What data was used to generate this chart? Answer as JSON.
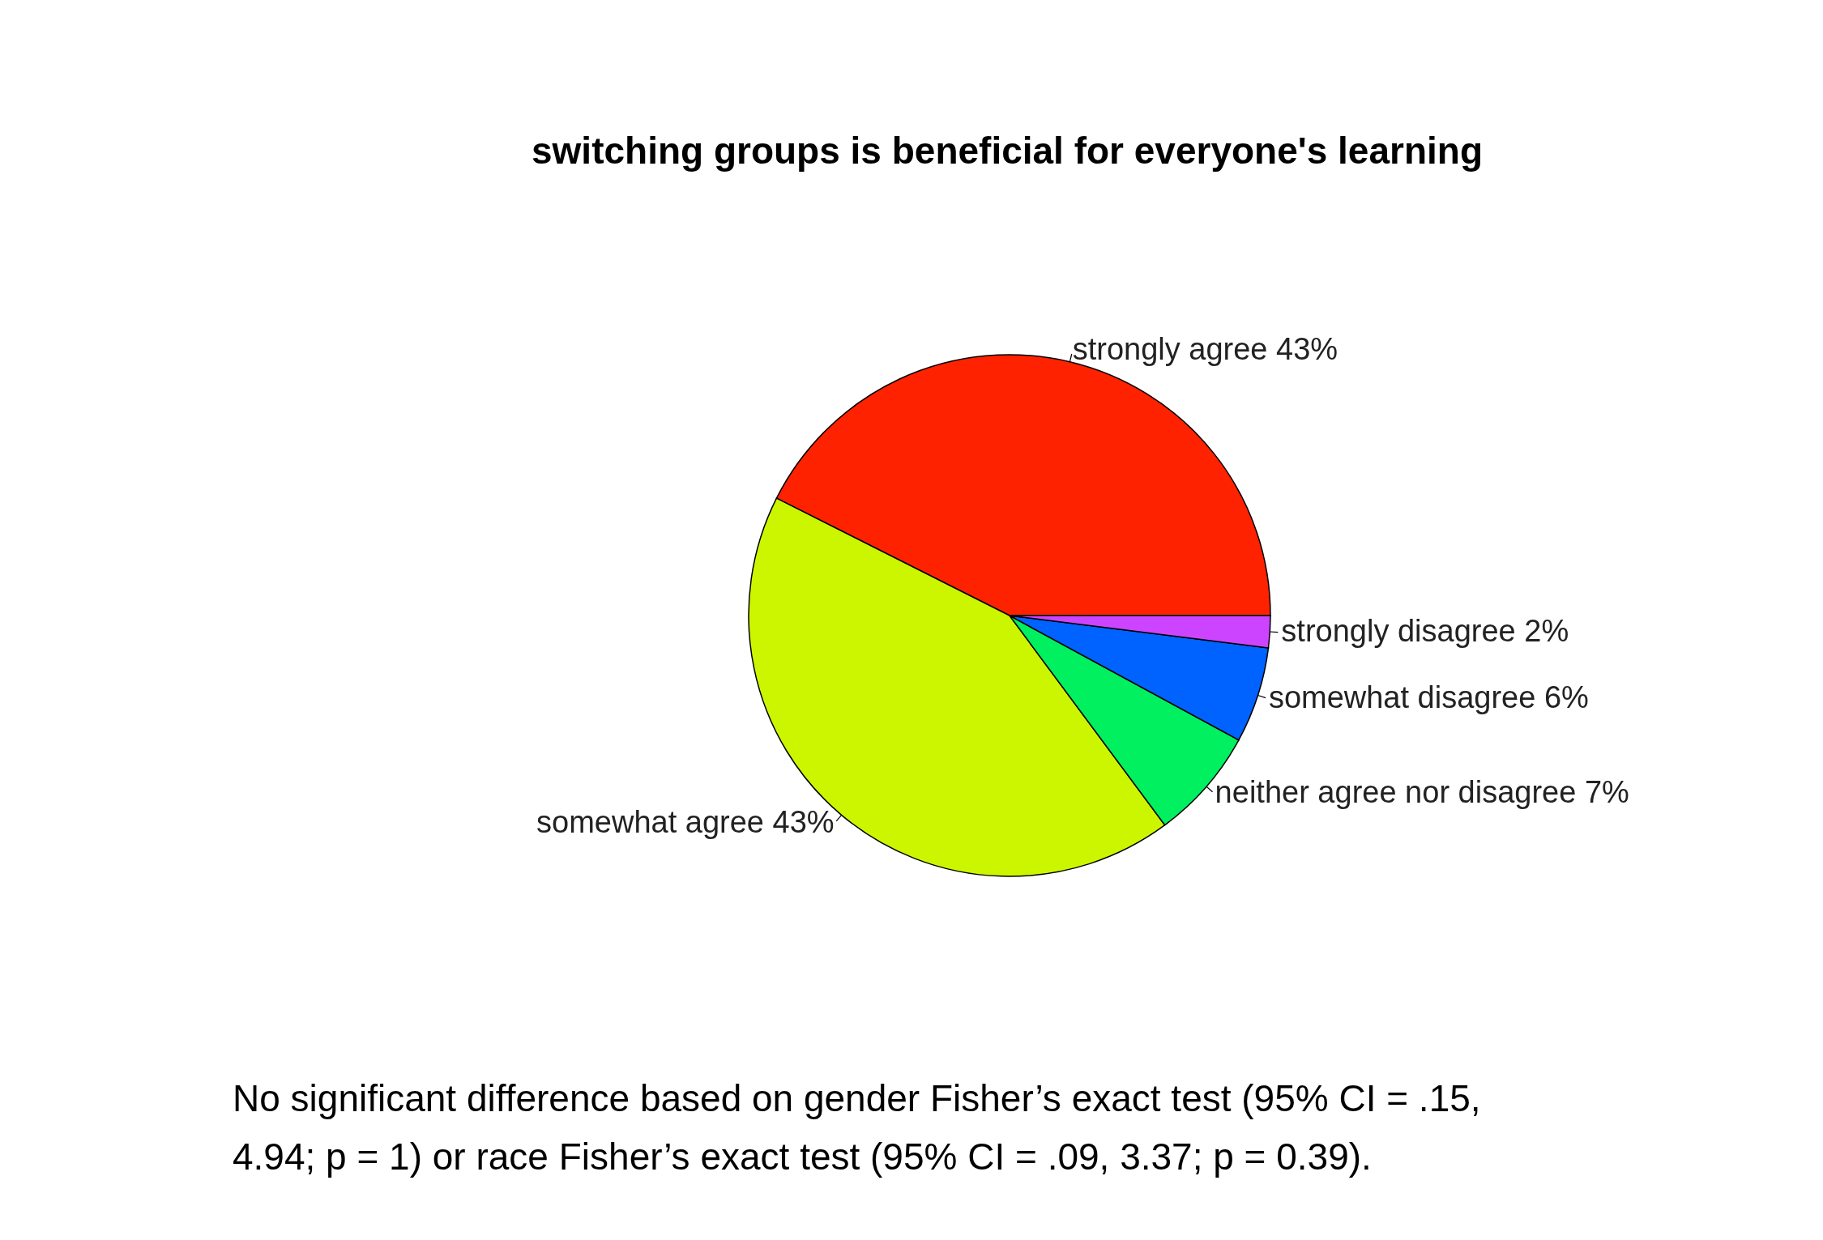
{
  "chart_data": {
    "type": "pie",
    "title": "switching groups is beneficial for everyone's learning",
    "categories": [
      "strongly agree",
      "somewhat agree",
      "neither agree nor disagree",
      "somewhat disagree",
      "strongly disagree"
    ],
    "values": [
      43,
      43,
      7,
      6,
      2
    ],
    "value_labels": [
      "43%",
      "43%",
      "7%",
      "6%",
      "2%"
    ],
    "colors": [
      "#ff2200",
      "#ccf600",
      "#00f060",
      "#0062ff",
      "#cc44ff"
    ],
    "annotations": [
      "No significant difference based on gender Fisher’s exact test (95% CI = .15,",
      "4.94; p = 1) or race Fisher’s exact test (95% CI = .09, 3.37; p = 0.39)."
    ]
  }
}
